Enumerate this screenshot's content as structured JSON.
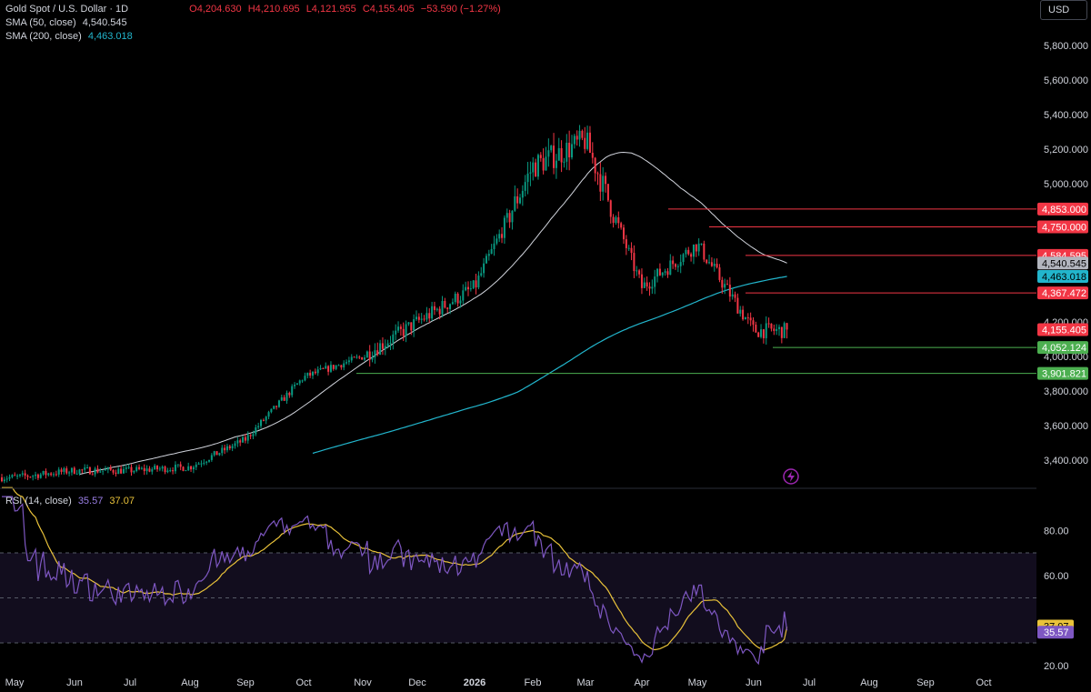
{
  "header": {
    "symbol": "Gold Spot / U.S. Dollar · 1D",
    "ohlc": {
      "open": "O4,204.630",
      "high": "H4,210.695",
      "low": "L4,121.955",
      "close": "C4,155.405",
      "change": "−53.590 (−1.27%)"
    },
    "sma50_label": "SMA (50, close)",
    "sma50_value": "4,540.545",
    "sma200_label": "SMA (200, close)",
    "sma200_value": "4,463.018",
    "currency": "USD"
  },
  "rsi_header": {
    "label": "RSI (14, close)",
    "rsi_value": "35.57",
    "ma_value": "37.07"
  },
  "colors": {
    "up": "#089981",
    "down": "#f23645",
    "sma50": "#d1d4dc",
    "sma200": "#22b5cc",
    "rsi": "#7e57c2",
    "rsi_ma": "#e9c23a",
    "support": "#4caf50",
    "resistance": "#f23645"
  },
  "chart_data": {
    "type": "candlestick",
    "price_axis": {
      "ticks": [
        "5,800.000",
        "5,600.000",
        "5,400.000",
        "5,200.000",
        "5,000.000",
        "4,200.000",
        "4,000.000",
        "3,800.000",
        "3,600.000",
        "3,400.000"
      ],
      "tick_values": [
        5800,
        5600,
        5400,
        5200,
        5000,
        4200,
        4000,
        3800,
        3600,
        3400
      ]
    },
    "time_axis": {
      "labels": [
        "May",
        "Jun",
        "Jul",
        "Aug",
        "Sep",
        "Oct",
        "Nov",
        "Dec",
        "2026",
        "Feb",
        "Mar",
        "Apr",
        "May",
        "Jun",
        "Jul",
        "Aug",
        "Sep",
        "Oct"
      ]
    },
    "price_anchors": [
      [
        "May",
        3300
      ],
      [
        "Jun",
        3340
      ],
      [
        "Jul",
        3340
      ],
      [
        "Aug",
        3360
      ],
      [
        "Sep",
        3520
      ],
      [
        "Oct",
        3880
      ],
      [
        "Nov",
        4000
      ],
      [
        "Dec",
        4200
      ],
      [
        "2026",
        4400
      ],
      [
        "Feb",
        5100
      ],
      [
        "Mar",
        5250
      ],
      [
        "Apr",
        4400
      ],
      [
        "May",
        4650
      ],
      [
        "Jun",
        4150
      ]
    ],
    "levels": [
      {
        "value": 4853.0,
        "label": "4,853.000",
        "kind": "resistance",
        "line": true
      },
      {
        "value": 4750.0,
        "label": "4,750.000",
        "kind": "resistance",
        "line": true
      },
      {
        "value": 4584.595,
        "label": "4,584.595",
        "kind": "resistance",
        "line": true
      },
      {
        "value": 4540.545,
        "label": "4,540.545",
        "kind": "sma50",
        "line": false
      },
      {
        "value": 4463.018,
        "label": "4,463.018",
        "kind": "sma200",
        "line": false
      },
      {
        "value": 4367.472,
        "label": "4,367.472",
        "kind": "resistance",
        "line": true
      },
      {
        "value": 4155.405,
        "label": "4,155.405",
        "kind": "last",
        "line": false
      },
      {
        "value": 4052.124,
        "label": "4,052.124",
        "kind": "support",
        "line": true
      },
      {
        "value": 3901.821,
        "label": "3,901.821",
        "kind": "support",
        "line": true
      }
    ],
    "last_price": 4155.405,
    "sma50_last": 4540.545,
    "sma200_last": 4463.018,
    "rsi": {
      "ticks": [
        "80.00",
        "60.00",
        "20.00"
      ],
      "tick_values": [
        80,
        60,
        20
      ],
      "upper_band": 70,
      "middle_band": 50,
      "lower_band": 30,
      "last": 35.57,
      "ma_last": 37.07
    }
  }
}
